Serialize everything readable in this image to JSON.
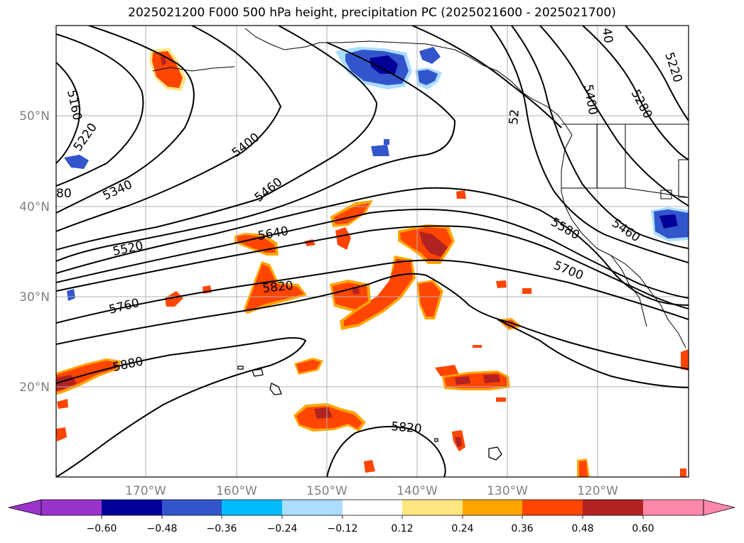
{
  "title": "2025021200 F000 500 hPa height, precipitation PC (2025021600 - 2025021700)",
  "lat_labels": [
    "50°N",
    "40°N",
    "30°N",
    "20°N"
  ],
  "lon_labels": [
    "170°W",
    "160°W",
    "150°W",
    "140°W",
    "130°W",
    "120°W"
  ],
  "contour_labels": [
    "5160",
    "5220",
    "80",
    "5340",
    "5400",
    "5460",
    "5520",
    "5640",
    "5760",
    "5820",
    "5880",
    "5820",
    "5580",
    "5700",
    "5460",
    "5400",
    "5280",
    "5220",
    "52",
    "40"
  ],
  "colorbar": {
    "ticks": [
      "−0.60",
      "−0.48",
      "−0.36",
      "−0.24",
      "−0.12",
      "0.12",
      "0.24",
      "0.36",
      "0.48",
      "0.60"
    ],
    "colors": [
      "#9a33cc",
      "#000099",
      "#3355cc",
      "#00bbff",
      "#aaddff",
      "#ffffff",
      "#ffe680",
      "#ffa500",
      "#ff4500",
      "#b22222",
      "#ff88aa"
    ]
  },
  "colors": {
    "contour": "#000000",
    "grid": "#b0b0b0",
    "coast": "#000000"
  },
  "icons": [
    "map-frame",
    "colorbar"
  ]
}
